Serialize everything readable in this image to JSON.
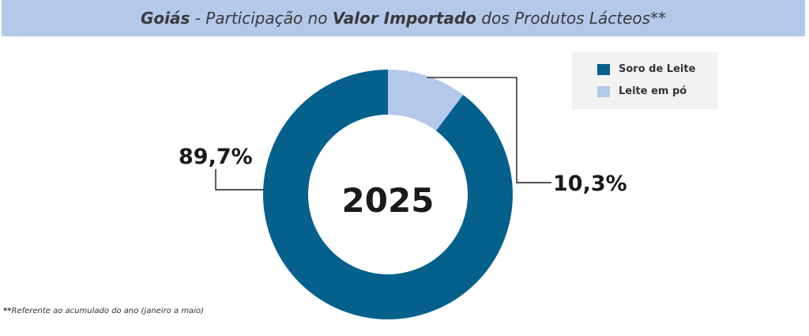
{
  "title": {
    "region": "Goiás",
    "part1": " - Participação no ",
    "emphasis": "Valor Importado",
    "part2": " dos Produtos Lácteos**"
  },
  "footnote": {
    "marker": "**",
    "text": "Referente ao acumulado do ano (janeiro a maio)"
  },
  "chart_data": {
    "type": "pie",
    "donut": true,
    "center_label": "2025",
    "legend_position": "top-right",
    "series": [
      {
        "name": "Soro de Leite",
        "value": 89.7,
        "label": "89,7%",
        "color": "#05608c"
      },
      {
        "name": "Leite em pó",
        "value": 10.3,
        "label": "10,3%",
        "color": "#b4c8ea"
      }
    ]
  }
}
